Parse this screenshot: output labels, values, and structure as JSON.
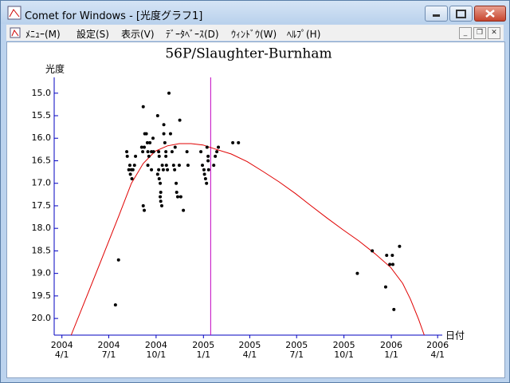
{
  "window": {
    "title": "Comet for Windows - [光度グラフ1]",
    "menu": [
      "ﾒﾆｭｰ(M)",
      "設定(S)",
      "表示(V)",
      "ﾃﾞｰﾀﾍﾞｰｽ(D)",
      "ｳｨﾝﾄﾞｳ(W)",
      "ﾍﾙﾌﾟ(H)"
    ]
  },
  "chart_data": {
    "type": "scatter",
    "title": "56P/Slaughter-Burnham",
    "ylabel": "光度",
    "xlabel": "日付",
    "xlim": [
      "2004-03-17",
      "2006-04-10"
    ],
    "ylim": [
      20.37,
      14.65
    ],
    "xticks": [
      {
        "value": "2004-04-01",
        "label": [
          "2004",
          "4/1"
        ]
      },
      {
        "value": "2004-07-01",
        "label": [
          "2004",
          "7/1"
        ]
      },
      {
        "value": "2004-10-01",
        "label": [
          "2004",
          "10/1"
        ]
      },
      {
        "value": "2005-01-01",
        "label": [
          "2005",
          "1/1"
        ]
      },
      {
        "value": "2005-04-01",
        "label": [
          "2005",
          "4/1"
        ]
      },
      {
        "value": "2005-07-01",
        "label": [
          "2005",
          "7/1"
        ]
      },
      {
        "value": "2005-10-01",
        "label": [
          "2005",
          "10/1"
        ]
      },
      {
        "value": "2006-01-01",
        "label": [
          "2006",
          "1/1"
        ]
      },
      {
        "value": "2006-04-01",
        "label": [
          "2006",
          "4/1"
        ]
      }
    ],
    "yticks": [
      {
        "value": 15,
        "label": "15.0"
      },
      15.5,
      {
        "value": 16,
        "label": "16.0"
      },
      16.5,
      {
        "value": 17,
        "label": "17.0"
      },
      17.5,
      {
        "value": 18,
        "label": "18.0"
      },
      18.5,
      {
        "value": 19,
        "label": "19.0"
      },
      19.5,
      {
        "value": 20,
        "label": "20.0"
      }
    ],
    "axis_color": "#0000c0",
    "points": {
      "color": "#000000",
      "x": [
        "2004-07-14",
        "2004-07-20",
        "2004-08-05",
        "2004-08-06",
        "2004-08-11",
        "2004-08-09",
        "2004-08-14",
        "2004-08-12",
        "2004-08-15",
        "2004-08-17",
        "2004-08-20",
        "2004-08-22",
        "2004-09-06",
        "2004-09-06",
        "2004-09-08",
        "2004-09-05",
        "2004-09-03",
        "2004-09-08",
        "2004-09-09",
        "2004-09-12",
        "2004-09-14",
        "2004-09-15",
        "2004-09-17",
        "2004-09-15",
        "2004-09-19",
        "2004-09-22",
        "2004-09-22",
        "2004-09-25",
        "2004-09-26",
        "2004-10-04",
        "2004-10-06",
        "2004-10-07",
        "2004-10-06",
        "2004-10-04",
        "2004-10-07",
        "2004-10-09",
        "2004-10-10",
        "2004-10-09",
        "2004-10-10",
        "2004-10-12",
        "2004-10-13",
        "2004-10-15",
        "2004-10-16",
        "2004-10-16",
        "2004-10-18",
        "2004-10-20",
        "2004-10-20",
        "2004-10-21",
        "2004-10-23",
        "2004-10-26",
        "2004-10-29",
        "2004-11-01",
        "2004-11-04",
        "2004-11-06",
        "2004-11-07",
        "2004-11-09",
        "2004-11-10",
        "2004-11-12",
        "2004-11-15",
        "2004-11-16",
        "2004-11-18",
        "2004-11-23",
        "2004-11-30",
        "2004-12-02",
        "2004-12-27",
        "2004-12-30",
        "2005-01-02",
        "2005-01-03",
        "2005-01-05",
        "2005-01-07",
        "2005-01-08",
        "2005-01-10",
        "2005-01-10",
        "2005-01-11",
        "2005-01-21",
        "2005-01-24",
        "2005-01-27",
        "2005-01-30",
        "2005-02-27",
        "2005-03-10",
        "2005-10-27",
        "2005-11-25",
        "2005-12-21",
        "2005-12-23",
        "2005-12-29",
        "2006-01-03",
        "2006-01-04",
        "2006-01-06",
        "2006-01-17"
      ],
      "values": [
        19.7,
        18.7,
        16.3,
        16.4,
        16.6,
        16.7,
        16.7,
        16.8,
        16.9,
        16.7,
        16.6,
        16.4,
        15.3,
        17.5,
        17.6,
        16.3,
        16.2,
        16.2,
        15.9,
        15.9,
        16.1,
        16.3,
        16.4,
        16.6,
        16.1,
        16.3,
        16.7,
        16.0,
        16.3,
        15.5,
        16.3,
        16.4,
        16.7,
        16.8,
        16.9,
        17.0,
        17.2,
        17.3,
        17.4,
        17.5,
        16.6,
        16.7,
        15.9,
        15.7,
        16.1,
        16.3,
        16.4,
        16.6,
        16.7,
        15.0,
        15.9,
        16.3,
        16.6,
        16.7,
        16.2,
        17.0,
        17.2,
        17.3,
        16.6,
        15.6,
        17.3,
        17.6,
        16.3,
        16.6,
        16.3,
        16.6,
        16.7,
        16.8,
        16.9,
        17.0,
        16.2,
        16.4,
        16.5,
        16.7,
        16.6,
        16.4,
        16.3,
        16.2,
        16.1,
        16.1,
        19.0,
        18.5,
        19.3,
        18.6,
        18.8,
        18.6,
        18.8,
        19.8,
        18.4
      ]
    },
    "curve": {
      "color": "#e00000",
      "x": [
        "2004-04-19",
        "2004-05-20",
        "2004-06-20",
        "2004-07-21",
        "2004-08-14",
        "2004-09-06",
        "2004-09-29",
        "2004-10-23",
        "2004-11-15",
        "2004-12-08",
        "2004-12-31",
        "2005-01-24",
        "2005-02-24",
        "2005-03-27",
        "2005-04-27",
        "2005-05-28",
        "2005-06-29",
        "2005-07-29",
        "2005-08-29",
        "2005-09-29",
        "2005-10-30",
        "2005-11-30",
        "2005-12-31",
        "2006-01-23",
        "2006-02-07",
        "2006-02-23",
        "2006-03-06"
      ],
      "values": [
        20.37,
        19.49,
        18.6,
        17.71,
        17.0,
        16.56,
        16.29,
        16.17,
        16.12,
        16.12,
        16.15,
        16.24,
        16.35,
        16.52,
        16.74,
        16.97,
        17.23,
        17.5,
        17.77,
        18.03,
        18.28,
        18.56,
        18.87,
        19.22,
        19.57,
        20.02,
        20.37
      ]
    },
    "marker": {
      "x": "2005-01-15",
      "color": "#c000c0"
    }
  }
}
